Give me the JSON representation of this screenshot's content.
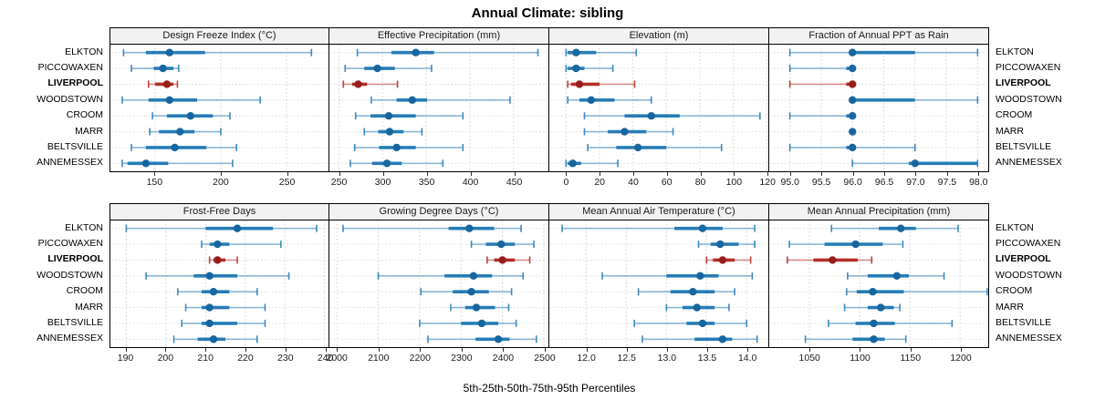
{
  "title": "Annual Climate: sibling",
  "xlabel": "5th-25th-50th-75th-95th Percentiles",
  "stations": [
    "ELKTON",
    "PICCOWAXEN",
    "LIVERPOOL",
    "WOODSTOWN",
    "CROOM",
    "MARR",
    "BELTSVILLE",
    "ANNEMESSEX"
  ],
  "highlight_station": "LIVERPOOL",
  "colors": {
    "series": "#1f77b4",
    "series_dot": "#17669f",
    "highlight": "#b2261f",
    "highlight_dot": "#991d1a",
    "grid": "#cccccc",
    "panel_header_bg": "#f2f2f2",
    "border": "#000000"
  },
  "chart_data": [
    {
      "type": "dot-whisker",
      "title": "Design Freeze Index (°C)",
      "xlim": [
        116,
        282
      ],
      "ticks": [
        150,
        200,
        250
      ],
      "tick_labels": [
        "150",
        "200",
        "250"
      ],
      "series": [
        {
          "name": "ELKTON",
          "percentiles": [
            126,
            143,
            161,
            188,
            269
          ]
        },
        {
          "name": "PICCOWAXEN",
          "percentiles": [
            132,
            149,
            156,
            164,
            168
          ]
        },
        {
          "name": "LIVERPOOL",
          "percentiles": [
            145,
            150,
            159,
            164,
            167
          ]
        },
        {
          "name": "WOODSTOWN",
          "percentiles": [
            125,
            145,
            161,
            182,
            230
          ]
        },
        {
          "name": "CROOM",
          "percentiles": [
            148,
            159,
            177,
            194,
            207
          ]
        },
        {
          "name": "MARR",
          "percentiles": [
            146,
            153,
            169,
            180,
            200
          ]
        },
        {
          "name": "BELTSVILLE",
          "percentiles": [
            132,
            143,
            165,
            189,
            212
          ]
        },
        {
          "name": "ANNEMESSEX",
          "percentiles": [
            125,
            129,
            143,
            160,
            209
          ]
        }
      ]
    },
    {
      "type": "dot-whisker",
      "title": "Effective Precipitation (mm)",
      "xlim": [
        239,
        490
      ],
      "ticks": [
        250,
        300,
        350,
        400,
        450
      ],
      "tick_labels": [
        "250",
        "300",
        "350",
        "400",
        "450"
      ],
      "series": [
        {
          "name": "ELKTON",
          "percentiles": [
            271,
            310,
            338,
            359,
            478
          ]
        },
        {
          "name": "PICCOWAXEN",
          "percentiles": [
            257,
            279,
            294,
            314,
            356
          ]
        },
        {
          "name": "LIVERPOOL",
          "percentiles": [
            255,
            265,
            272,
            282,
            317
          ]
        },
        {
          "name": "WOODSTOWN",
          "percentiles": [
            287,
            316,
            334,
            351,
            446
          ]
        },
        {
          "name": "CROOM",
          "percentiles": [
            269,
            286,
            307,
            338,
            392
          ]
        },
        {
          "name": "MARR",
          "percentiles": [
            279,
            295,
            308,
            324,
            345
          ]
        },
        {
          "name": "BELTSVILLE",
          "percentiles": [
            268,
            296,
            316,
            338,
            392
          ]
        },
        {
          "name": "ANNEMESSEX",
          "percentiles": [
            263,
            288,
            305,
            322,
            369
          ]
        }
      ]
    },
    {
      "type": "dot-whisker",
      "title": "Elevation (m)",
      "xlim": [
        -10,
        121
      ],
      "ticks": [
        0,
        20,
        40,
        60,
        80,
        100,
        120
      ],
      "tick_labels": [
        "0",
        "20",
        "40",
        "60",
        "80",
        "100",
        "120"
      ],
      "series": [
        {
          "name": "ELKTON",
          "percentiles": [
            0,
            1,
            6,
            18,
            42
          ]
        },
        {
          "name": "PICCOWAXEN",
          "percentiles": [
            0,
            1,
            6,
            11,
            28
          ]
        },
        {
          "name": "LIVERPOOL",
          "percentiles": [
            1,
            3,
            8,
            20,
            41
          ]
        },
        {
          "name": "WOODSTOWN",
          "percentiles": [
            1,
            8,
            15,
            29,
            51
          ]
        },
        {
          "name": "CROOM",
          "percentiles": [
            11,
            35,
            51,
            68,
            116
          ]
        },
        {
          "name": "MARR",
          "percentiles": [
            11,
            25,
            35,
            48,
            64
          ]
        },
        {
          "name": "BELTSVILLE",
          "percentiles": [
            13,
            30,
            43,
            60,
            93
          ]
        },
        {
          "name": "ANNEMESSEX",
          "percentiles": [
            0,
            1,
            4,
            9,
            31
          ]
        }
      ]
    },
    {
      "type": "dot-whisker",
      "title": "Fraction of Annual PPT as Rain",
      "xlim": [
        94.67,
        98.17
      ],
      "ticks": [
        95.0,
        95.5,
        96.0,
        96.5,
        97.0,
        97.5,
        98.0
      ],
      "tick_labels": [
        "95.0",
        "95.5",
        "96.0",
        "96.5",
        "97.0",
        "97.5",
        "98.0"
      ],
      "series": [
        {
          "name": "ELKTON",
          "percentiles": [
            95.0,
            96.0,
            96.0,
            97.0,
            98.0
          ]
        },
        {
          "name": "PICCOWAXEN",
          "percentiles": [
            95.0,
            95.9,
            96.0,
            96.0,
            96.0
          ]
        },
        {
          "name": "LIVERPOOL",
          "percentiles": [
            95.0,
            95.9,
            96.0,
            96.0,
            96.0
          ]
        },
        {
          "name": "WOODSTOWN",
          "percentiles": [
            96.0,
            96.0,
            96.0,
            97.0,
            98.0
          ]
        },
        {
          "name": "CROOM",
          "percentiles": [
            95.0,
            95.9,
            96.0,
            96.0,
            96.0
          ]
        },
        {
          "name": "MARR",
          "percentiles": [
            96.0,
            96.0,
            96.0,
            96.0,
            96.0
          ]
        },
        {
          "name": "BELTSVILLE",
          "percentiles": [
            95.0,
            95.9,
            96.0,
            96.0,
            97.0
          ]
        },
        {
          "name": "ANNEMESSEX",
          "percentiles": [
            96.0,
            96.9,
            97.0,
            98.0,
            98.0
          ]
        }
      ]
    },
    {
      "type": "dot-whisker",
      "title": "Frost-Free Days",
      "xlim": [
        186,
        241
      ],
      "ticks": [
        190,
        200,
        210,
        220,
        230,
        240
      ],
      "tick_labels": [
        "190",
        "200",
        "210",
        "220",
        "230",
        "240"
      ],
      "series": [
        {
          "name": "ELKTON",
          "percentiles": [
            190,
            210,
            218,
            227,
            238
          ]
        },
        {
          "name": "PICCOWAXEN",
          "percentiles": [
            209,
            211,
            213,
            216,
            229
          ]
        },
        {
          "name": "LIVERPOOL",
          "percentiles": [
            211,
            212,
            213,
            215,
            218
          ]
        },
        {
          "name": "WOODSTOWN",
          "percentiles": [
            195,
            207,
            211,
            218,
            231
          ]
        },
        {
          "name": "CROOM",
          "percentiles": [
            203,
            209,
            212,
            216,
            223
          ]
        },
        {
          "name": "MARR",
          "percentiles": [
            205,
            209,
            211,
            216,
            225
          ]
        },
        {
          "name": "BELTSVILLE",
          "percentiles": [
            204,
            209,
            211,
            218,
            225
          ]
        },
        {
          "name": "ANNEMESSEX",
          "percentiles": [
            202,
            208,
            212,
            215,
            223
          ]
        }
      ]
    },
    {
      "type": "dot-whisker",
      "title": "Growing Degree Days (°C)",
      "xlim": [
        1982,
        2511
      ],
      "ticks": [
        2000,
        2100,
        2200,
        2300,
        2400,
        2500
      ],
      "tick_labels": [
        "2000",
        "2100",
        "2200",
        "2300",
        "2400",
        "2500"
      ],
      "series": [
        {
          "name": "ELKTON",
          "percentiles": [
            2015,
            2270,
            2320,
            2380,
            2445
          ]
        },
        {
          "name": "PICCOWAXEN",
          "percentiles": [
            2325,
            2360,
            2397,
            2430,
            2476
          ]
        },
        {
          "name": "LIVERPOOL",
          "percentiles": [
            2363,
            2380,
            2400,
            2430,
            2466
          ]
        },
        {
          "name": "WOODSTOWN",
          "percentiles": [
            2100,
            2260,
            2330,
            2375,
            2450
          ]
        },
        {
          "name": "CROOM",
          "percentiles": [
            2203,
            2280,
            2325,
            2367,
            2422
          ]
        },
        {
          "name": "MARR",
          "percentiles": [
            2275,
            2310,
            2337,
            2382,
            2415
          ]
        },
        {
          "name": "BELTSVILLE",
          "percentiles": [
            2200,
            2300,
            2350,
            2390,
            2433
          ]
        },
        {
          "name": "ANNEMESSEX",
          "percentiles": [
            2220,
            2335,
            2390,
            2417,
            2482
          ]
        }
      ]
    },
    {
      "type": "dot-whisker",
      "title": "Mean Annual Air Temperature (°C)",
      "xlim": [
        11.54,
        14.27
      ],
      "ticks": [
        12.0,
        12.5,
        13.0,
        13.5,
        14.0
      ],
      "tick_labels": [
        "12.0",
        "12.5",
        "13.0",
        "13.5",
        "14.0"
      ],
      "series": [
        {
          "name": "ELKTON",
          "percentiles": [
            11.7,
            13.1,
            13.45,
            13.7,
            14.1
          ]
        },
        {
          "name": "PICCOWAXEN",
          "percentiles": [
            13.4,
            13.55,
            13.67,
            13.9,
            14.1
          ]
        },
        {
          "name": "LIVERPOOL",
          "percentiles": [
            13.5,
            13.58,
            13.7,
            13.85,
            14.05
          ]
        },
        {
          "name": "WOODSTOWN",
          "percentiles": [
            12.2,
            13.0,
            13.42,
            13.65,
            14.07
          ]
        },
        {
          "name": "CROOM",
          "percentiles": [
            12.65,
            13.05,
            13.33,
            13.6,
            13.85
          ]
        },
        {
          "name": "MARR",
          "percentiles": [
            13.0,
            13.2,
            13.38,
            13.6,
            13.78
          ]
        },
        {
          "name": "BELTSVILLE",
          "percentiles": [
            12.6,
            13.25,
            13.45,
            13.6,
            14.0
          ]
        },
        {
          "name": "ANNEMESSEX",
          "percentiles": [
            12.7,
            13.35,
            13.7,
            13.82,
            14.13
          ]
        }
      ]
    },
    {
      "type": "dot-whisker",
      "title": "Mean Annual Precipitation (mm)",
      "xlim": [
        1010,
        1228
      ],
      "ticks": [
        1050,
        1100,
        1150,
        1200
      ],
      "tick_labels": [
        "1050",
        "1100",
        "1150",
        "1200"
      ],
      "series": [
        {
          "name": "ELKTON",
          "percentiles": [
            1072,
            1119,
            1141,
            1156,
            1198
          ]
        },
        {
          "name": "PICCOWAXEN",
          "percentiles": [
            1030,
            1065,
            1096,
            1123,
            1143
          ]
        },
        {
          "name": "LIVERPOOL",
          "percentiles": [
            1028,
            1054,
            1073,
            1098,
            1112
          ]
        },
        {
          "name": "WOODSTOWN",
          "percentiles": [
            1088,
            1108,
            1137,
            1149,
            1184
          ]
        },
        {
          "name": "CROOM",
          "percentiles": [
            1087,
            1097,
            1113,
            1144,
            1227
          ]
        },
        {
          "name": "MARR",
          "percentiles": [
            1085,
            1108,
            1121,
            1134,
            1140
          ]
        },
        {
          "name": "BELTSVILLE",
          "percentiles": [
            1069,
            1096,
            1114,
            1135,
            1192
          ]
        },
        {
          "name": "ANNEMESSEX",
          "percentiles": [
            1046,
            1093,
            1114,
            1125,
            1146
          ]
        }
      ]
    }
  ]
}
